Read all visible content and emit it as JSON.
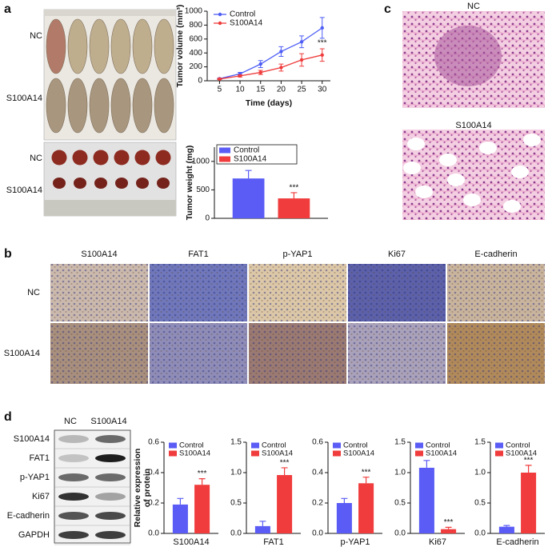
{
  "panel_labels": [
    "a",
    "b",
    "c",
    "d"
  ],
  "panel_a": {
    "photo_row_labels": [
      "NC",
      "S100A14",
      "NC",
      "S100A14"
    ]
  },
  "panel_b": {
    "columns": [
      "S100A14",
      "FAT1",
      "p-YAP1",
      "Ki67",
      "E-cadherin"
    ],
    "rows": [
      "NC",
      "S100A14"
    ]
  },
  "panel_c": {
    "images": [
      "NC",
      "S100A14"
    ]
  },
  "panel_d": {
    "blot_lanes": [
      "NC",
      "S100A14"
    ],
    "blot_rows": [
      "S100A14",
      "FAT1",
      "p-YAP1",
      "Ki67",
      "E-cadherin",
      "GAPDH"
    ]
  },
  "chart_data": [
    {
      "type": "line",
      "ylabel": "Tumor volume (mm³)",
      "xlabel": "Time (days)",
      "x": [
        5,
        10,
        15,
        20,
        25,
        30
      ],
      "xlim": [
        2,
        32
      ],
      "xticks": [
        5,
        10,
        15,
        20,
        25,
        30
      ],
      "ylim": [
        0,
        1000
      ],
      "yticks": [
        0,
        200,
        400,
        600,
        800,
        1000
      ],
      "series": [
        {
          "name": "Control",
          "color": "#4d5df5",
          "values": [
            30,
            100,
            240,
            420,
            560,
            760
          ],
          "errors": [
            8,
            20,
            50,
            70,
            85,
            150
          ]
        },
        {
          "name": "S100A14",
          "color": "#ef3b3b",
          "values": [
            25,
            70,
            120,
            190,
            300,
            370
          ],
          "errors": [
            8,
            15,
            30,
            50,
            90,
            90
          ]
        }
      ],
      "annotation": "***",
      "legend": "upper left"
    },
    {
      "type": "bar",
      "ylabel": "Tumor weight (mg)",
      "ylim": [
        0,
        1250
      ],
      "yticks": [
        0,
        500,
        1000
      ],
      "series": [
        {
          "name": "Control",
          "color": "#5a5cf5",
          "values": [
            700
          ],
          "errors": [
            140
          ]
        },
        {
          "name": "S100A14",
          "color": "#f03c3c",
          "values": [
            350
          ],
          "errors": [
            100
          ]
        }
      ],
      "annotation": "***",
      "legend": "upper left",
      "legend_box": true
    },
    {
      "type": "bar",
      "ylabel": [
        "Relative expression",
        "of protein"
      ],
      "categories": [
        "S100A14"
      ],
      "ylim": [
        0,
        0.6
      ],
      "yticks": [
        {
          "value": 0,
          "label": "0.0"
        },
        0.2,
        0.4,
        0.6
      ],
      "series": [
        {
          "name": "Control",
          "color": "#5a5cf5",
          "values": [
            0.19
          ],
          "errors": [
            0.04
          ]
        },
        {
          "name": "S100A14",
          "color": "#f03c3c",
          "values": [
            0.32
          ],
          "errors": [
            0.04
          ]
        }
      ],
      "annotation": "***",
      "legend": "upper left"
    },
    {
      "type": "bar",
      "categories": [
        "FAT1"
      ],
      "ylim": [
        0,
        1.5
      ],
      "yticks": [
        {
          "value": 0,
          "label": "0.0"
        },
        0.5,
        {
          "value": 1,
          "label": "1.0"
        },
        1.5
      ],
      "series": [
        {
          "name": "Control",
          "color": "#5a5cf5",
          "values": [
            0.12
          ],
          "errors": [
            0.08
          ]
        },
        {
          "name": "S100A14",
          "color": "#f03c3c",
          "values": [
            0.96
          ],
          "errors": [
            0.12
          ]
        }
      ],
      "annotation": "***",
      "legend": "upper left"
    },
    {
      "type": "bar",
      "categories": [
        "p-YAP1"
      ],
      "ylim": [
        0,
        0.6
      ],
      "yticks": [
        {
          "value": 0,
          "label": "0.0"
        },
        0.2,
        0.4,
        0.6
      ],
      "series": [
        {
          "name": "Control",
          "color": "#5a5cf5",
          "values": [
            0.2
          ],
          "errors": [
            0.03
          ]
        },
        {
          "name": "S100A14",
          "color": "#f03c3c",
          "values": [
            0.33
          ],
          "errors": [
            0.04
          ]
        }
      ],
      "annotation": "***",
      "legend": "upper left"
    },
    {
      "type": "bar",
      "categories": [
        "Ki67"
      ],
      "ylim": [
        0,
        1.5
      ],
      "yticks": [
        {
          "value": 0,
          "label": "0.0"
        },
        0.5,
        {
          "value": 1,
          "label": "1.0"
        },
        1.5
      ],
      "series": [
        {
          "name": "Control",
          "color": "#5a5cf5",
          "values": [
            1.08
          ],
          "errors": [
            0.12
          ]
        },
        {
          "name": "S100A14",
          "color": "#f03c3c",
          "values": [
            0.07
          ],
          "errors": [
            0.03
          ]
        }
      ],
      "annotation": "***",
      "legend": "upper left"
    },
    {
      "type": "bar",
      "categories": [
        "E-cadherin"
      ],
      "ylim": [
        0,
        1.5
      ],
      "yticks": [
        {
          "value": 0,
          "label": "0.0"
        },
        0.5,
        {
          "value": 1,
          "label": "1.0"
        },
        1.5
      ],
      "series": [
        {
          "name": "Control",
          "color": "#5a5cf5",
          "values": [
            0.11
          ],
          "errors": [
            0.02
          ]
        },
        {
          "name": "S100A14",
          "color": "#f03c3c",
          "values": [
            1.0
          ],
          "errors": [
            0.12
          ]
        }
      ],
      "annotation": "***",
      "legend": "upper left"
    }
  ]
}
